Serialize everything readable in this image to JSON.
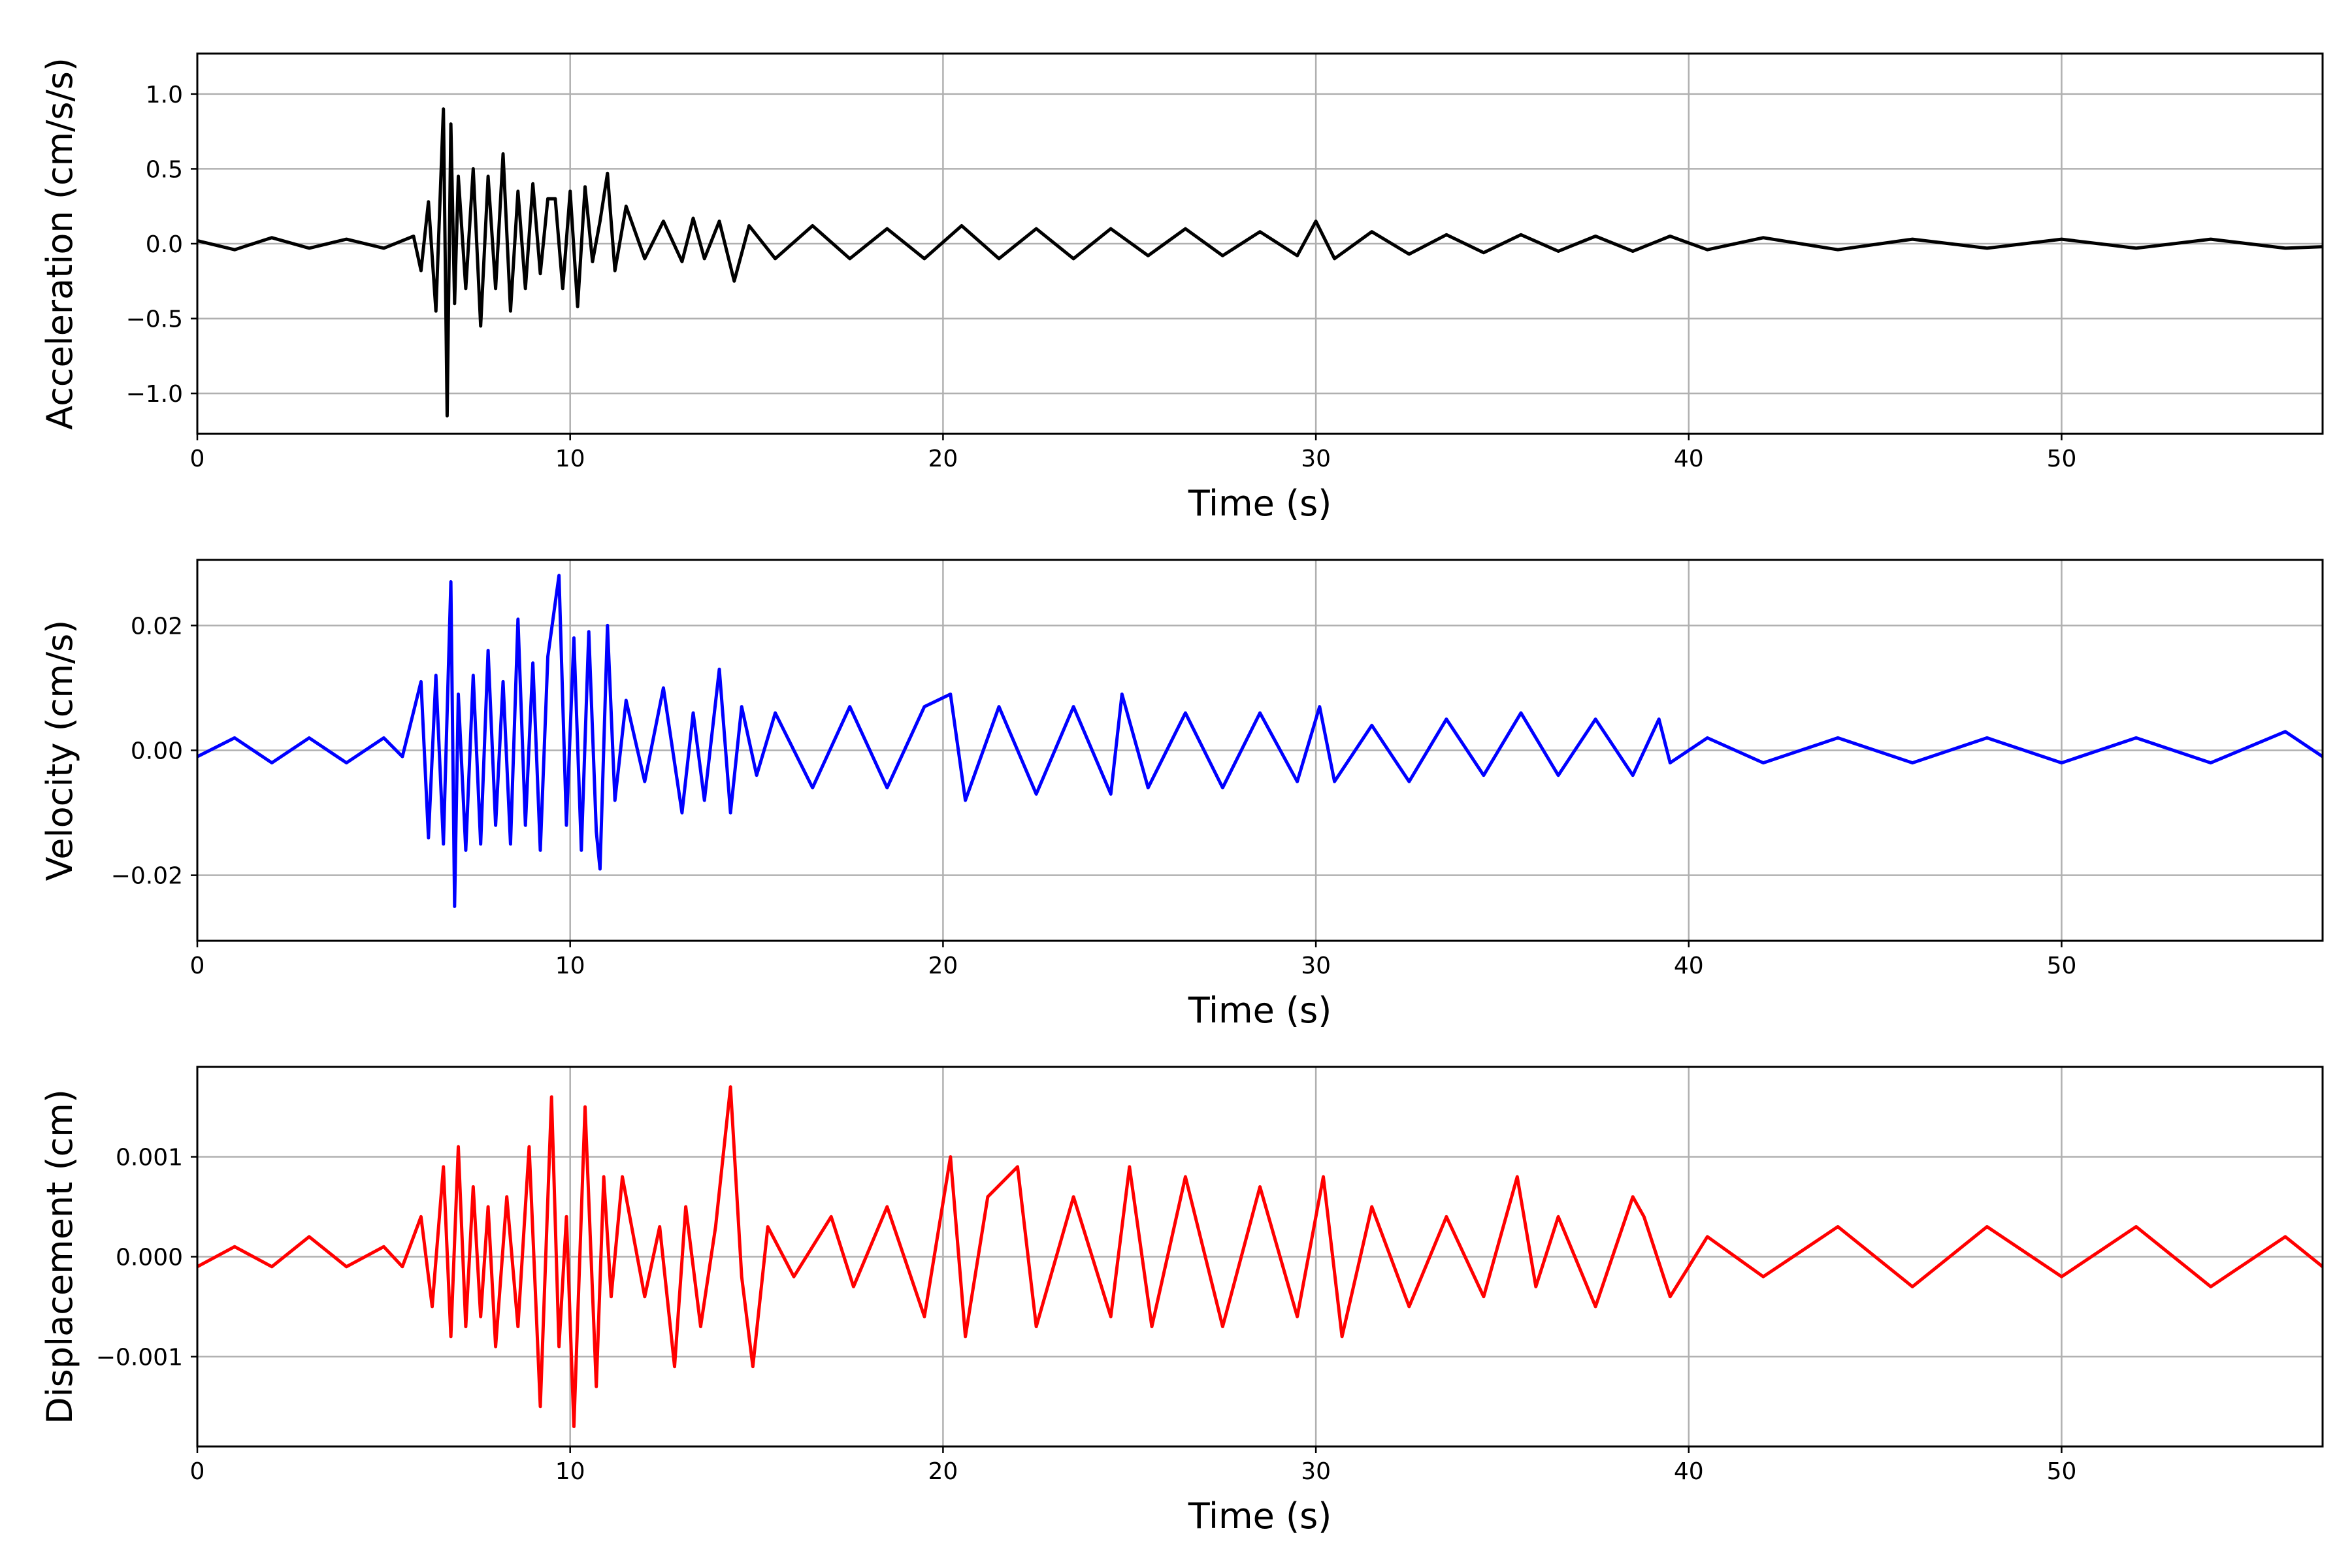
{
  "chart_data": [
    {
      "type": "line",
      "title": "",
      "xlabel": "Time (s)",
      "ylabel": "Acceleration (cm/s/s)",
      "xlim": [
        0,
        57
      ],
      "ylim": [
        -1.27,
        1.27
      ],
      "x_ticks": [
        0,
        10,
        20,
        30,
        40,
        50
      ],
      "y_ticks": [
        -1.0,
        -0.5,
        0.0,
        0.5,
        1.0
      ],
      "y_tick_labels": [
        "−1.0",
        "−0.5",
        "0.0",
        "0.5",
        "1.0"
      ],
      "grid": true,
      "color": "#000000",
      "series": [
        {
          "x": [
            0,
            1,
            2,
            3,
            4,
            5,
            5.8,
            6.0,
            6.2,
            6.4,
            6.6,
            6.7,
            6.8,
            6.9,
            7.0,
            7.2,
            7.4,
            7.6,
            7.8,
            8.0,
            8.2,
            8.4,
            8.6,
            8.8,
            9.0,
            9.2,
            9.4,
            9.6,
            9.8,
            10.0,
            10.2,
            10.4,
            10.6,
            10.8,
            11.0,
            11.2,
            11.5,
            12.0,
            12.5,
            13.0,
            13.3,
            13.6,
            14.0,
            14.4,
            14.8,
            15.5,
            16.5,
            17.5,
            18.5,
            19.5,
            20.5,
            21.5,
            22.5,
            23.5,
            24.5,
            25.5,
            26.5,
            27.5,
            28.5,
            29.5,
            30.0,
            30.5,
            31.5,
            32.5,
            33.5,
            34.5,
            35.5,
            36.5,
            37.5,
            38.5,
            39.5,
            40.5,
            42,
            44,
            46,
            48,
            50,
            52,
            54,
            56,
            57
          ],
          "y": [
            0.02,
            -0.04,
            0.04,
            -0.03,
            0.03,
            -0.03,
            0.05,
            -0.18,
            0.28,
            -0.45,
            0.9,
            -1.15,
            0.8,
            -0.4,
            0.45,
            -0.3,
            0.5,
            -0.55,
            0.45,
            -0.3,
            0.6,
            -0.45,
            0.35,
            -0.3,
            0.4,
            -0.2,
            0.3,
            0.3,
            -0.3,
            0.35,
            -0.42,
            0.38,
            -0.12,
            0.15,
            0.47,
            -0.18,
            0.25,
            -0.1,
            0.15,
            -0.12,
            0.17,
            -0.1,
            0.15,
            -0.25,
            0.12,
            -0.1,
            0.12,
            -0.1,
            0.1,
            -0.1,
            0.12,
            -0.1,
            0.1,
            -0.1,
            0.1,
            -0.08,
            0.1,
            -0.08,
            0.08,
            -0.08,
            0.15,
            -0.1,
            0.08,
            -0.07,
            0.06,
            -0.06,
            0.06,
            -0.05,
            0.05,
            -0.05,
            0.05,
            -0.04,
            0.04,
            -0.04,
            0.03,
            -0.03,
            0.03,
            -0.03,
            0.03,
            -0.03,
            -0.02
          ]
        }
      ]
    },
    {
      "type": "line",
      "title": "",
      "xlabel": "Time (s)",
      "ylabel": "Velocity (cm/s)",
      "xlim": [
        0,
        57
      ],
      "ylim": [
        -0.0305,
        0.0305
      ],
      "x_ticks": [
        0,
        10,
        20,
        30,
        40,
        50
      ],
      "y_ticks": [
        -0.02,
        0.0,
        0.02
      ],
      "y_tick_labels": [
        "−0.02",
        "0.00",
        "0.02"
      ],
      "grid": true,
      "color": "#0000ff",
      "series": [
        {
          "x": [
            0,
            1,
            2,
            3,
            4,
            5,
            5.5,
            6.0,
            6.2,
            6.4,
            6.6,
            6.8,
            6.9,
            7.0,
            7.2,
            7.4,
            7.6,
            7.8,
            8.0,
            8.2,
            8.4,
            8.6,
            8.8,
            9.0,
            9.2,
            9.4,
            9.7,
            9.9,
            10.1,
            10.3,
            10.5,
            10.7,
            10.8,
            11.0,
            11.2,
            11.5,
            12.0,
            12.5,
            13.0,
            13.3,
            13.6,
            14.0,
            14.3,
            14.6,
            15.0,
            15.5,
            16.5,
            17.5,
            18.5,
            19.5,
            20.2,
            20.6,
            21.5,
            22.5,
            23.5,
            24.5,
            24.8,
            25.5,
            26.5,
            27.5,
            28.5,
            29.5,
            30.1,
            30.5,
            31.5,
            32.5,
            33.5,
            34.5,
            35.5,
            36.5,
            37.5,
            38.5,
            39.2,
            39.5,
            40.5,
            42,
            44,
            46,
            48,
            50,
            52,
            54,
            56,
            57
          ],
          "y": [
            -0.001,
            0.002,
            -0.002,
            0.002,
            -0.002,
            0.002,
            -0.001,
            0.011,
            -0.014,
            0.012,
            -0.015,
            0.027,
            -0.025,
            0.009,
            -0.016,
            0.012,
            -0.015,
            0.016,
            -0.012,
            0.011,
            -0.015,
            0.021,
            -0.012,
            0.014,
            -0.016,
            0.015,
            0.028,
            -0.012,
            0.018,
            -0.016,
            0.019,
            -0.013,
            -0.019,
            0.02,
            -0.008,
            0.008,
            -0.005,
            0.01,
            -0.01,
            0.006,
            -0.008,
            0.013,
            -0.01,
            0.007,
            -0.004,
            0.006,
            -0.006,
            0.007,
            -0.006,
            0.007,
            0.009,
            -0.008,
            0.007,
            -0.007,
            0.007,
            -0.007,
            0.009,
            -0.006,
            0.006,
            -0.006,
            0.006,
            -0.005,
            0.007,
            -0.005,
            0.004,
            -0.005,
            0.005,
            -0.004,
            0.006,
            -0.004,
            0.005,
            -0.004,
            0.005,
            -0.002,
            0.002,
            -0.002,
            0.002,
            -0.002,
            0.002,
            -0.002,
            0.002,
            -0.002,
            0.003,
            -0.001
          ]
        }
      ]
    },
    {
      "type": "line",
      "title": "",
      "xlabel": "Time (s)",
      "ylabel": "Displacement (cm)",
      "xlim": [
        0,
        57
      ],
      "ylim": [
        -0.0019,
        0.0019
      ],
      "x_ticks": [
        0,
        10,
        20,
        30,
        40,
        50
      ],
      "y_ticks": [
        -0.001,
        0.0,
        0.001
      ],
      "y_tick_labels": [
        "−0.001",
        "0.000",
        "0.001"
      ],
      "grid": true,
      "color": "#ff0000",
      "series": [
        {
          "x": [
            0,
            1,
            2,
            3,
            4,
            5,
            5.5,
            6.0,
            6.3,
            6.6,
            6.8,
            7.0,
            7.2,
            7.4,
            7.6,
            7.8,
            8.0,
            8.3,
            8.6,
            8.9,
            9.2,
            9.5,
            9.7,
            9.9,
            10.1,
            10.4,
            10.7,
            10.9,
            11.1,
            11.4,
            11.7,
            12.0,
            12.4,
            12.8,
            13.1,
            13.5,
            13.9,
            14.3,
            14.6,
            14.9,
            15.3,
            16.0,
            17.0,
            17.6,
            18.5,
            19.5,
            20.2,
            20.6,
            21.2,
            22.0,
            22.5,
            23.5,
            24.5,
            25.0,
            25.6,
            26.5,
            27.5,
            28.5,
            29.5,
            30.2,
            30.7,
            31.5,
            32.5,
            33.5,
            34.5,
            35.4,
            35.9,
            36.5,
            37.5,
            38.5,
            38.8,
            39.5,
            40.5,
            42,
            44,
            46,
            48,
            50,
            52,
            54,
            56,
            57
          ],
          "y": [
            -0.0001,
            0.0001,
            -0.0001,
            0.0002,
            -0.0001,
            0.0001,
            -0.0001,
            0.0004,
            -0.0005,
            0.0009,
            -0.0008,
            0.0011,
            -0.0007,
            0.0007,
            -0.0006,
            0.0005,
            -0.0009,
            0.0006,
            -0.0007,
            0.0011,
            -0.0015,
            0.0016,
            -0.0009,
            0.0004,
            -0.0017,
            0.0015,
            -0.0013,
            0.0008,
            -0.0004,
            0.0008,
            0.0002,
            -0.0004,
            0.0003,
            -0.0011,
            0.0005,
            -0.0007,
            0.0003,
            0.0017,
            -0.0002,
            -0.0011,
            0.0003,
            -0.0002,
            0.0004,
            -0.0003,
            0.0005,
            -0.0006,
            0.001,
            -0.0008,
            0.0006,
            0.0009,
            -0.0007,
            0.0006,
            -0.0006,
            0.0009,
            -0.0007,
            0.0008,
            -0.0007,
            0.0007,
            -0.0006,
            0.0008,
            -0.0008,
            0.0005,
            -0.0005,
            0.0004,
            -0.0004,
            0.0008,
            -0.0003,
            0.0004,
            -0.0005,
            0.0006,
            0.0004,
            -0.0004,
            0.0002,
            -0.0002,
            0.0003,
            -0.0003,
            0.0003,
            -0.0002,
            0.0003,
            -0.0003,
            0.0002,
            -0.0001
          ]
        }
      ]
    }
  ]
}
